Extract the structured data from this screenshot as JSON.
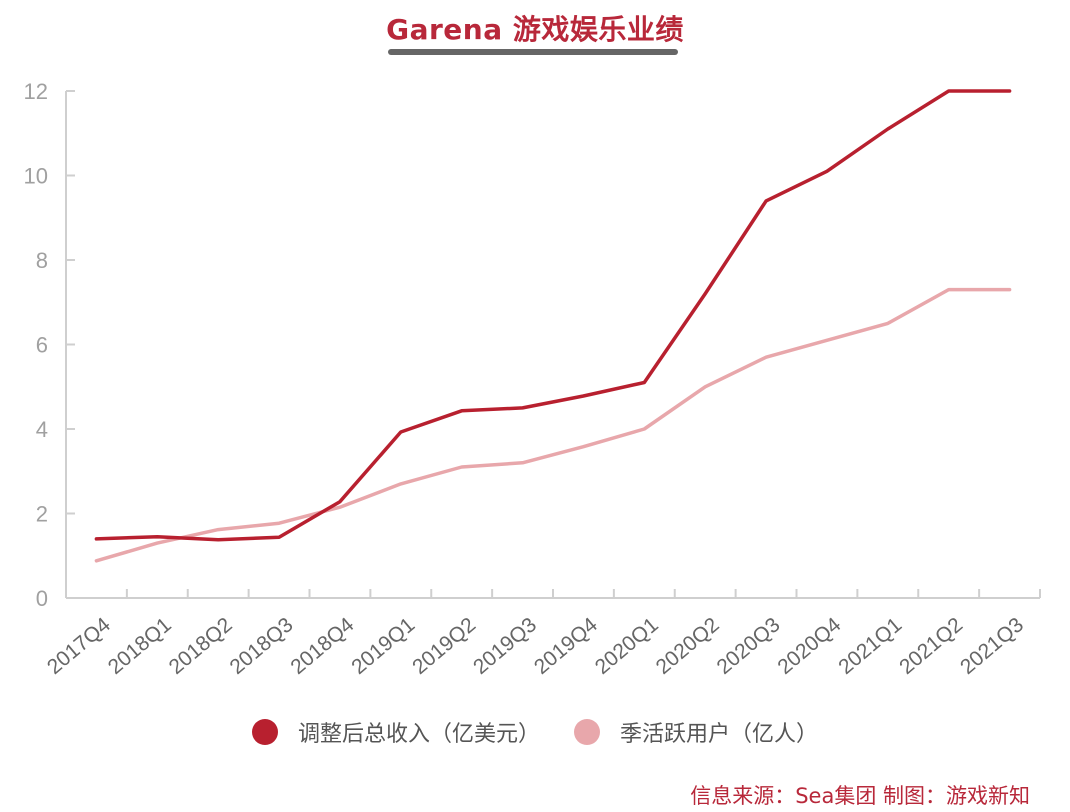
{
  "title": "Garena 游戏娱乐业绩",
  "legend": [
    {
      "label": "调整后总收入（亿美元）",
      "color": "#b8202f"
    },
    {
      "label": "季活跃用户（亿人）",
      "color": "#e8a7ab"
    }
  ],
  "source": "信息来源：Sea集团  制图：游戏新知",
  "chart_data": {
    "type": "line",
    "title": "Garena 游戏娱乐业绩",
    "xlabel": "",
    "ylabel": "",
    "ylim": [
      0,
      12
    ],
    "yticks": [
      0,
      2,
      4,
      6,
      8,
      10,
      12
    ],
    "grid": false,
    "legend_position": "bottom",
    "categories": [
      "2017Q4",
      "2018Q1",
      "2018Q2",
      "2018Q3",
      "2018Q4",
      "2019Q1",
      "2019Q2",
      "2019Q3",
      "2019Q4",
      "2020Q1",
      "2020Q2",
      "2020Q3",
      "2020Q4",
      "2021Q1",
      "2021Q2",
      "2021Q3"
    ],
    "series": [
      {
        "name": "调整后总收入（亿美元）",
        "color": "#b8202f",
        "values": [
          1.4,
          1.45,
          1.38,
          1.44,
          2.28,
          3.93,
          4.43,
          4.5,
          4.78,
          5.1,
          7.2,
          9.4,
          10.1,
          11.1,
          12.0,
          12.0
        ]
      },
      {
        "name": "季活跃用户（亿人）",
        "color": "#e8a7ab",
        "values": [
          0.88,
          1.3,
          1.62,
          1.77,
          2.15,
          2.7,
          3.1,
          3.2,
          3.58,
          4.0,
          5.0,
          5.7,
          6.1,
          6.5,
          7.3,
          7.3
        ]
      }
    ]
  }
}
